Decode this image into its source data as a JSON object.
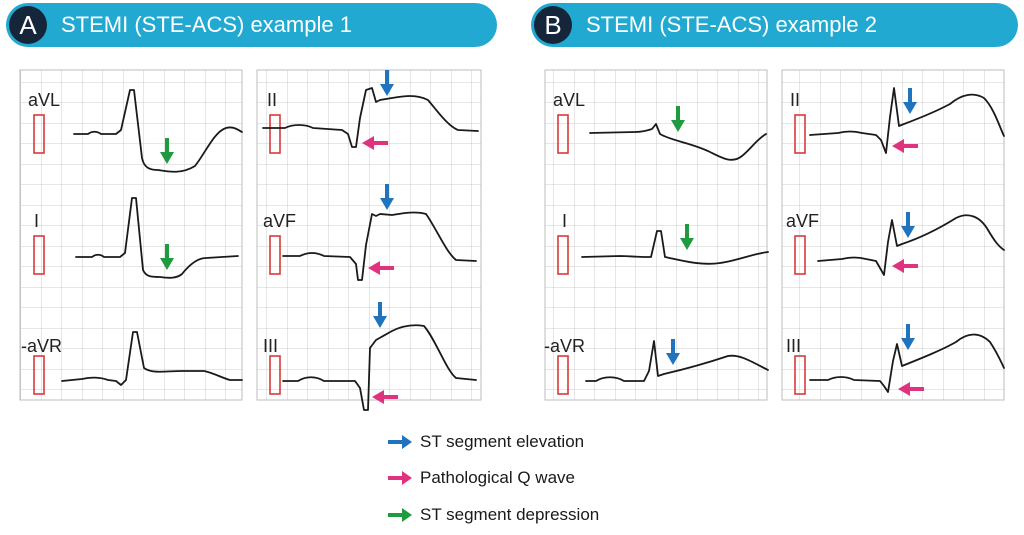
{
  "panels": [
    {
      "letter": "A",
      "title": "STEMI (STE-ACS) example 1"
    },
    {
      "letter": "B",
      "title": "STEMI (STE-ACS) example 2"
    }
  ],
  "leads": {
    "a_left": [
      "aVL",
      "I",
      "-aVR"
    ],
    "a_right": [
      "II",
      "aVF",
      "III"
    ],
    "b_left": [
      "aVL",
      "I",
      "-aVR"
    ],
    "b_right": [
      "II",
      "aVF",
      "III"
    ]
  },
  "legend": [
    {
      "label": "ST segment elevation",
      "color": "#1f74bd",
      "icon": "blue-arrow-icon"
    },
    {
      "label": "Pathological Q wave",
      "color": "#e0337f",
      "icon": "pink-arrow-icon"
    },
    {
      "label": "ST segment depression",
      "color": "#1f9a3e",
      "icon": "green-arrow-icon"
    }
  ],
  "colors": {
    "banner": "#22a9d1",
    "badge": "#15263a",
    "grid": "#c8c8c8",
    "calibration": "#d93a3a",
    "trace": "#1a1a1a"
  }
}
